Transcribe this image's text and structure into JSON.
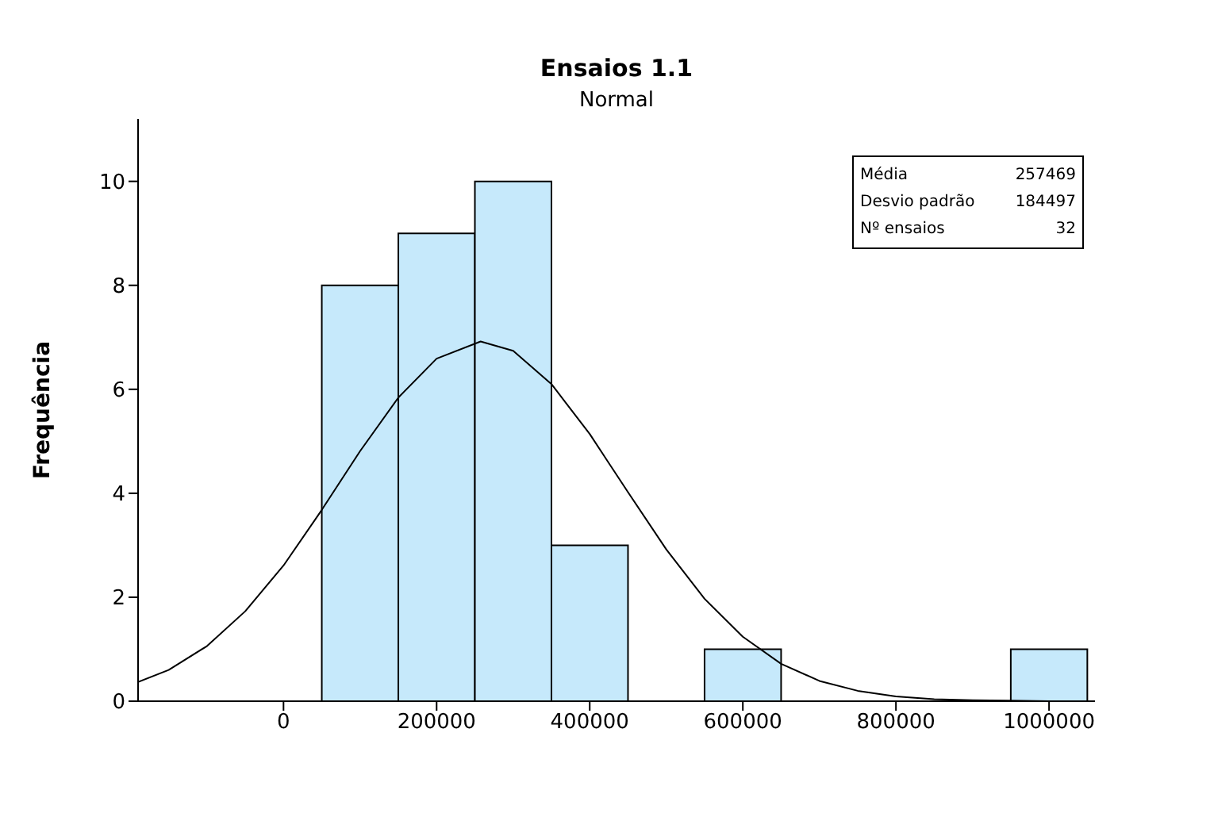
{
  "chart_data": {
    "type": "histogram",
    "title": "Ensaios 1.1",
    "subtitle": "Normal",
    "ylabel": "Frequência",
    "bins": [
      50000,
      150000,
      250000,
      350000,
      450000,
      550000,
      650000,
      750000,
      850000,
      950000,
      1050000
    ],
    "values": [
      8,
      9,
      10,
      3,
      0,
      1,
      0,
      0,
      0,
      1
    ],
    "color": "#c6e9fb",
    "series": [
      {
        "type": "line",
        "color": "#000000",
        "x": [
          -190000,
          -150000,
          -100000,
          -50000,
          0,
          50000,
          100000,
          150000,
          200000,
          257469,
          300000,
          350000,
          400000,
          450000,
          500000,
          550000,
          600000,
          650000,
          700000,
          750000,
          800000,
          850000,
          900000,
          950000,
          1000000,
          1060000
        ],
        "values": [
          0.37,
          0.6,
          1.06,
          1.73,
          2.61,
          3.68,
          4.81,
          5.84,
          6.59,
          6.92,
          6.74,
          6.1,
          5.14,
          4.02,
          2.92,
          1.97,
          1.24,
          0.72,
          0.39,
          0.2,
          0.09,
          0.04,
          0.02,
          0.01,
          0,
          0
        ]
      }
    ],
    "xlim": [
      -190000,
      1060000
    ],
    "xticks": [
      0,
      200000,
      400000,
      600000,
      800000,
      1000000
    ],
    "ylim": [
      0,
      11.2
    ],
    "yticks": [
      0,
      2,
      4,
      6,
      8,
      10
    ],
    "grid": false,
    "legend": false,
    "marker": "none",
    "line_style": "solid",
    "annotations": [
      "Média 257469",
      "Desvio padrão 184497",
      "Nº ensaios 32"
    ]
  }
}
